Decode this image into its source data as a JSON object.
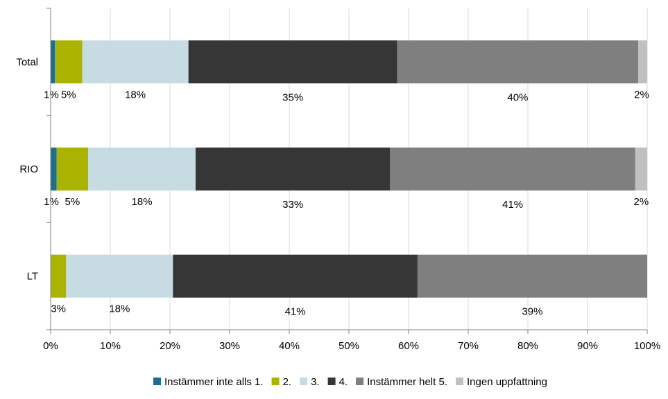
{
  "chart_data": {
    "type": "bar",
    "orientation": "horizontal",
    "stacked": true,
    "categories": [
      "Total",
      "RIO",
      "LT"
    ],
    "series": [
      {
        "name": "Instämmer inte alls 1.",
        "color": "#1b6f8c",
        "values": [
          0.7,
          1.0,
          0.0
        ],
        "labels": [
          "1%",
          "1%",
          ""
        ]
      },
      {
        "name": "2.",
        "color": "#a9b300",
        "values": [
          4.6,
          5.3,
          2.6
        ],
        "labels": [
          "5%",
          "5%",
          "3%"
        ]
      },
      {
        "name": "3.",
        "color": "#c6dce2",
        "values": [
          17.8,
          18.0,
          17.9
        ],
        "labels": [
          "18%",
          "18%",
          "18%"
        ]
      },
      {
        "name": "4.",
        "color": "#363636",
        "values": [
          35.0,
          32.6,
          41.0
        ],
        "labels": [
          "35%",
          "33%",
          "41%"
        ]
      },
      {
        "name": "Instämmer helt 5.",
        "color": "#7f7f7f",
        "values": [
          40.4,
          41.1,
          38.5
        ],
        "labels": [
          "40%",
          "41%",
          "39%"
        ]
      },
      {
        "name": "Ingen uppfattning",
        "color": "#c0c0c0",
        "values": [
          1.5,
          2.0,
          0.0
        ],
        "labels": [
          "2%",
          "2%",
          ""
        ]
      }
    ],
    "x_ticks": [
      "0%",
      "10%",
      "20%",
      "30%",
      "40%",
      "50%",
      "60%",
      "70%",
      "80%",
      "90%",
      "100%"
    ],
    "xlim": [
      0,
      100
    ],
    "grid": "vertical",
    "legend_position": "bottom"
  }
}
